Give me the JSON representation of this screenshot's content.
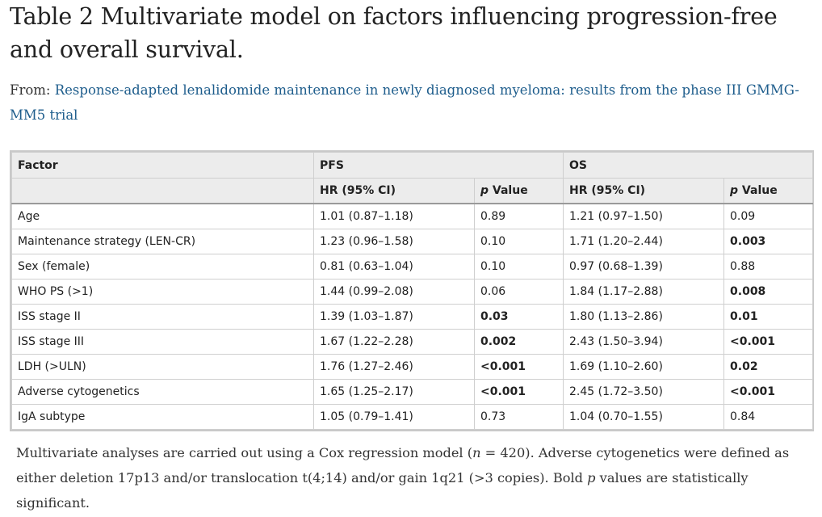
{
  "title": "Table 2 Multivariate model on factors influencing progression-free and overall survival.",
  "from_label": "From: ",
  "from_link": "Response-adapted lenalidomide maintenance in newly diagnosed myeloma: results from the phase III GMMG-MM5 trial",
  "table": {
    "header_row1": {
      "factor": "Factor",
      "pfs": "PFS",
      "os": "OS"
    },
    "header_row2": {
      "pfs_hr": "HR (95% CI)",
      "pfs_p_italic": "p",
      "pfs_p_rest": " Value",
      "os_hr": "HR (95% CI)",
      "os_p_italic": "p",
      "os_p_rest": " Value"
    },
    "rows": [
      {
        "factor": "Age",
        "pfs_hr": "1.01 (0.87–1.18)",
        "pfs_p": "0.89",
        "os_hr": "1.21 (0.97–1.50)",
        "os_p": "0.09"
      },
      {
        "factor": "Maintenance strategy (LEN-CR)",
        "pfs_hr": "1.23 (0.96–1.58)",
        "pfs_p": "0.10",
        "os_hr": "1.71 (1.20–2.44)",
        "os_p": "0.003"
      },
      {
        "factor": "Sex (female)",
        "pfs_hr": "0.81 (0.63–1.04)",
        "pfs_p": "0.10",
        "os_hr": "0.97 (0.68–1.39)",
        "os_p": "0.88"
      },
      {
        "factor": "WHO PS (>1)",
        "pfs_hr": "1.44 (0.99–2.08)",
        "pfs_p": "0.06",
        "os_hr": "1.84 (1.17–2.88)",
        "os_p": "0.008"
      },
      {
        "factor": "ISS stage II",
        "pfs_hr": "1.39 (1.03–1.87)",
        "pfs_p": "0.03",
        "os_hr": "1.80 (1.13–2.86)",
        "os_p": "0.01"
      },
      {
        "factor": "ISS stage III",
        "pfs_hr": "1.67 (1.22–2.28)",
        "pfs_p": "0.002",
        "os_hr": "2.43 (1.50–3.94)",
        "os_p": "<0.001"
      },
      {
        "factor": "LDH (>ULN)",
        "pfs_hr": "1.76 (1.27–2.46)",
        "pfs_p": "<0.001",
        "os_hr": "1.69 (1.10–2.60)",
        "os_p": "0.02"
      },
      {
        "factor": "Adverse cytogenetics",
        "pfs_hr": "1.65 (1.25–2.17)",
        "pfs_p": "<0.001",
        "os_hr": "2.45 (1.72–3.50)",
        "os_p": "<0.001"
      },
      {
        "factor": "IgA subtype",
        "pfs_hr": "1.05 (0.79–1.41)",
        "pfs_p": "0.73",
        "os_hr": "1.04 (0.70–1.55)",
        "os_p": "0.84"
      }
    ]
  },
  "footnote": {
    "part1": "Multivariate analyses are carried out using a Cox regression model (",
    "n_italic": "n",
    "part2": " = 420). Adverse cytogenetics were defined as either deletion 17p13 and/or translocation t(4;14) and/or gain 1q21 (>3 copies). Bold ",
    "p_italic": "p",
    "part3": " values are statistically significant."
  },
  "colors": {
    "link": "#1e5d8c",
    "header_bg": "#ececec",
    "border": "#cfcfcf"
  }
}
